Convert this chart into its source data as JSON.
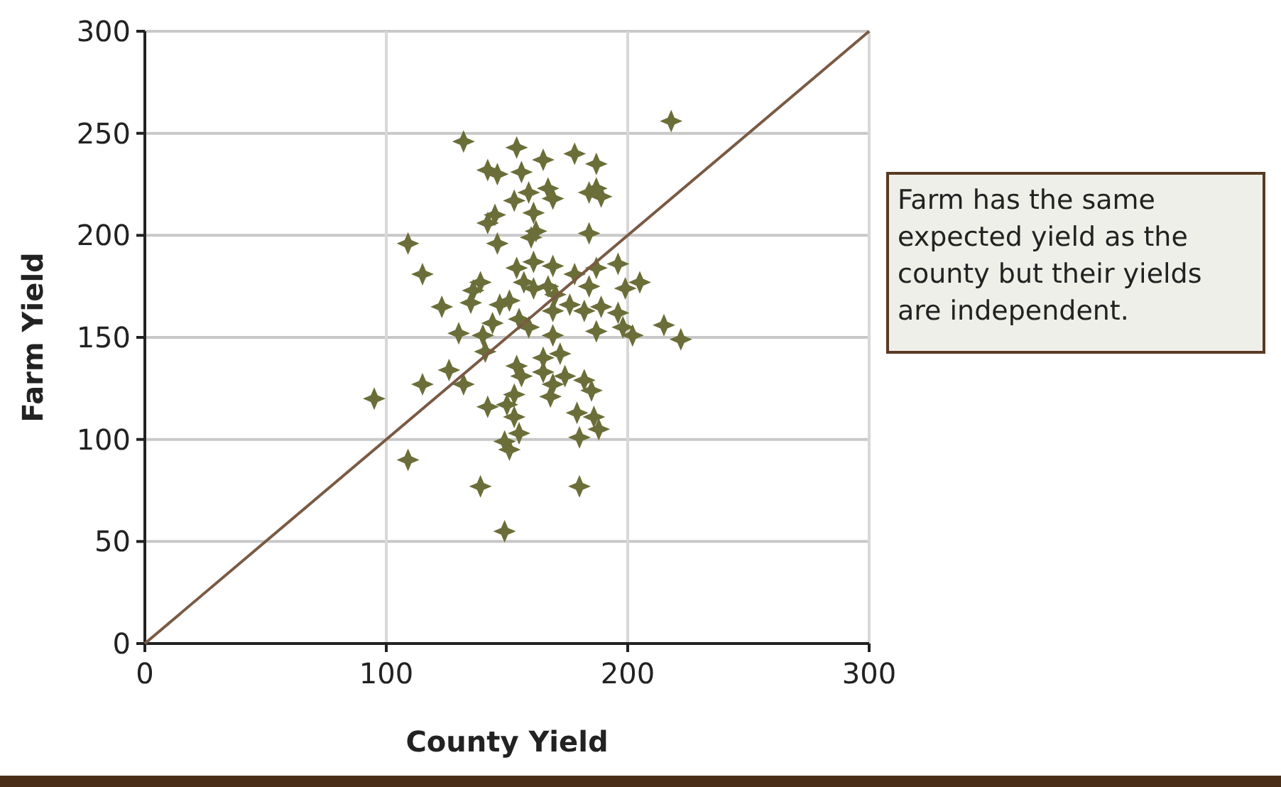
{
  "chart_data": {
    "type": "scatter",
    "xlabel": "County Yield",
    "ylabel": "Farm Yield",
    "xlim": [
      0,
      300
    ],
    "ylim": [
      0,
      300
    ],
    "xticks": [
      0,
      100,
      200,
      300
    ],
    "yticks": [
      0,
      50,
      100,
      150,
      200,
      250,
      300
    ],
    "grid": true,
    "annotations": [
      "Farm has the same expected yield as the county but their yields are independent."
    ],
    "series": [
      {
        "color": "#6b6e38",
        "marker": "star",
        "x": [
          218,
          132,
          154,
          178,
          187,
          165,
          142,
          146,
          156,
          167,
          169,
          187,
          189,
          184,
          153,
          159,
          161,
          145,
          142,
          162,
          160,
          184,
          146,
          109,
          115,
          154,
          161,
          169,
          178,
          187,
          196,
          184,
          157,
          161,
          139,
          136,
          135,
          123,
          147,
          151,
          167,
          170,
          176,
          169,
          182,
          189,
          199,
          205,
          196,
          198,
          202,
          215,
          222,
          187,
          169,
          155,
          159,
          144,
          140,
          130,
          141,
          126,
          115,
          132,
          95,
          154,
          156,
          165,
          172,
          174,
          165,
          169,
          168,
          182,
          185,
          153,
          142,
          150,
          153,
          179,
          186,
          188,
          180,
          155,
          149,
          151,
          109,
          139,
          180,
          149
        ],
        "values": [
          256,
          246,
          243,
          240,
          235,
          237,
          232,
          230,
          231,
          223,
          218,
          223,
          219,
          221,
          217,
          221,
          211,
          210,
          206,
          202,
          199,
          201,
          196,
          196,
          181,
          184,
          187,
          185,
          181,
          184,
          186,
          175,
          177,
          174,
          177,
          173,
          167,
          165,
          166,
          168,
          175,
          171,
          166,
          163,
          163,
          165,
          174,
          177,
          162,
          155,
          151,
          156,
          149,
          153,
          151,
          159,
          155,
          157,
          151,
          152,
          143,
          134,
          127,
          127,
          120,
          136,
          131,
          140,
          142,
          131,
          133,
          127,
          121,
          129,
          124,
          122,
          116,
          117,
          111,
          113,
          111,
          105,
          101,
          103,
          99,
          95,
          90,
          77,
          77,
          55
        ]
      },
      {
        "type": "line",
        "color": "#7a5a44",
        "marker": "none",
        "x": [
          0,
          300
        ],
        "values": [
          0,
          300
        ]
      }
    ]
  }
}
